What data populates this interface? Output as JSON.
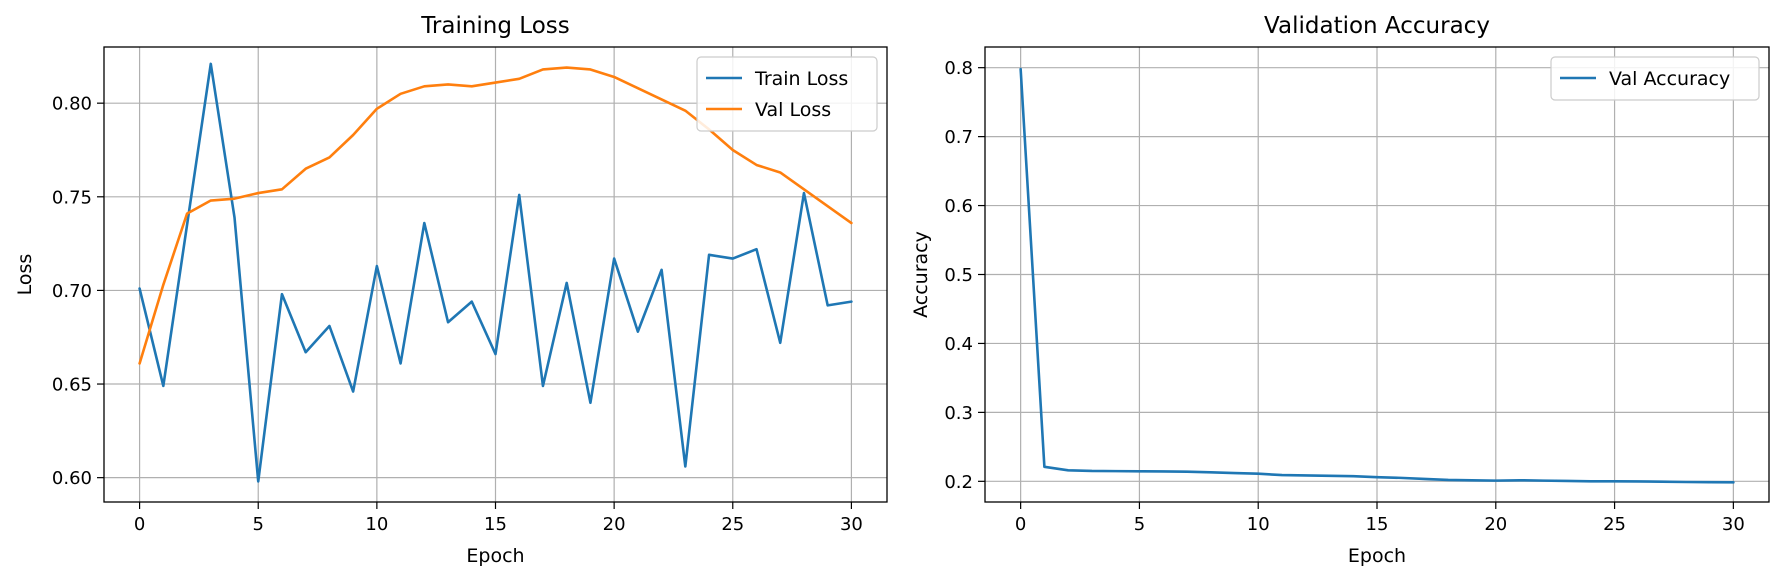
{
  "chart_data": [
    {
      "type": "line",
      "title": "Training Loss",
      "xlabel": "Epoch",
      "ylabel": "Loss",
      "xlim": [
        -1.5,
        31.5
      ],
      "ylim": [
        0.587,
        0.83
      ],
      "xticks": [
        0,
        5,
        10,
        15,
        20,
        25,
        30
      ],
      "xtick_labels": [
        "0",
        "5",
        "10",
        "15",
        "20",
        "25",
        "30"
      ],
      "yticks": [
        0.6,
        0.65,
        0.7,
        0.75,
        0.8
      ],
      "ytick_labels": [
        "0.60",
        "0.65",
        "0.70",
        "0.75",
        "0.80"
      ],
      "grid": true,
      "legend_position": "top-right",
      "x": [
        0,
        1,
        2,
        3,
        4,
        5,
        6,
        7,
        8,
        9,
        10,
        11,
        12,
        13,
        14,
        15,
        16,
        17,
        18,
        19,
        20,
        21,
        22,
        23,
        24,
        25,
        26,
        27,
        28,
        29,
        30
      ],
      "series": [
        {
          "name": "Train Loss",
          "color": "#1f77b4",
          "values": [
            0.701,
            0.649,
            0.735,
            0.821,
            0.739,
            0.598,
            0.698,
            0.667,
            0.681,
            0.646,
            0.713,
            0.661,
            0.736,
            0.683,
            0.694,
            0.666,
            0.751,
            0.649,
            0.704,
            0.64,
            0.717,
            0.678,
            0.711,
            0.606,
            0.719,
            0.717,
            0.722,
            0.672,
            0.752,
            0.692,
            0.694
          ]
        },
        {
          "name": "Val Loss",
          "color": "#ff7f0e",
          "values": [
            0.661,
            0.703,
            0.741,
            0.748,
            0.749,
            0.752,
            0.754,
            0.765,
            0.771,
            0.783,
            0.797,
            0.805,
            0.809,
            0.81,
            0.809,
            0.811,
            0.813,
            0.818,
            0.819,
            0.818,
            0.814,
            0.808,
            0.802,
            0.796,
            0.786,
            0.775,
            0.767,
            0.763,
            0.754,
            0.745,
            0.736
          ]
        }
      ]
    },
    {
      "type": "line",
      "title": "Validation Accuracy",
      "xlabel": "Epoch",
      "ylabel": "Accuracy",
      "xlim": [
        -1.5,
        31.5
      ],
      "ylim": [
        0.17,
        0.83
      ],
      "xticks": [
        0,
        5,
        10,
        15,
        20,
        25,
        30
      ],
      "xtick_labels": [
        "0",
        "5",
        "10",
        "15",
        "20",
        "25",
        "30"
      ],
      "yticks": [
        0.2,
        0.3,
        0.4,
        0.5,
        0.6,
        0.7,
        0.8
      ],
      "ytick_labels": [
        "0.2",
        "0.3",
        "0.4",
        "0.5",
        "0.6",
        "0.7",
        "0.8"
      ],
      "grid": true,
      "legend_position": "top-right",
      "x": [
        0,
        1,
        2,
        3,
        4,
        5,
        6,
        7,
        8,
        9,
        10,
        11,
        12,
        13,
        14,
        15,
        16,
        17,
        18,
        19,
        20,
        21,
        22,
        23,
        24,
        25,
        26,
        27,
        28,
        29,
        30
      ],
      "series": [
        {
          "name": "Val Accuracy",
          "color": "#1f77b4",
          "values": [
            0.798,
            0.221,
            0.216,
            0.215,
            0.2148,
            0.2145,
            0.2143,
            0.214,
            0.213,
            0.212,
            0.211,
            0.209,
            0.2085,
            0.208,
            0.2075,
            0.206,
            0.205,
            0.2035,
            0.202,
            0.2015,
            0.201,
            0.2015,
            0.201,
            0.2005,
            0.2,
            0.2,
            0.1998,
            0.1995,
            0.199,
            0.1988,
            0.1985
          ]
        }
      ]
    }
  ]
}
